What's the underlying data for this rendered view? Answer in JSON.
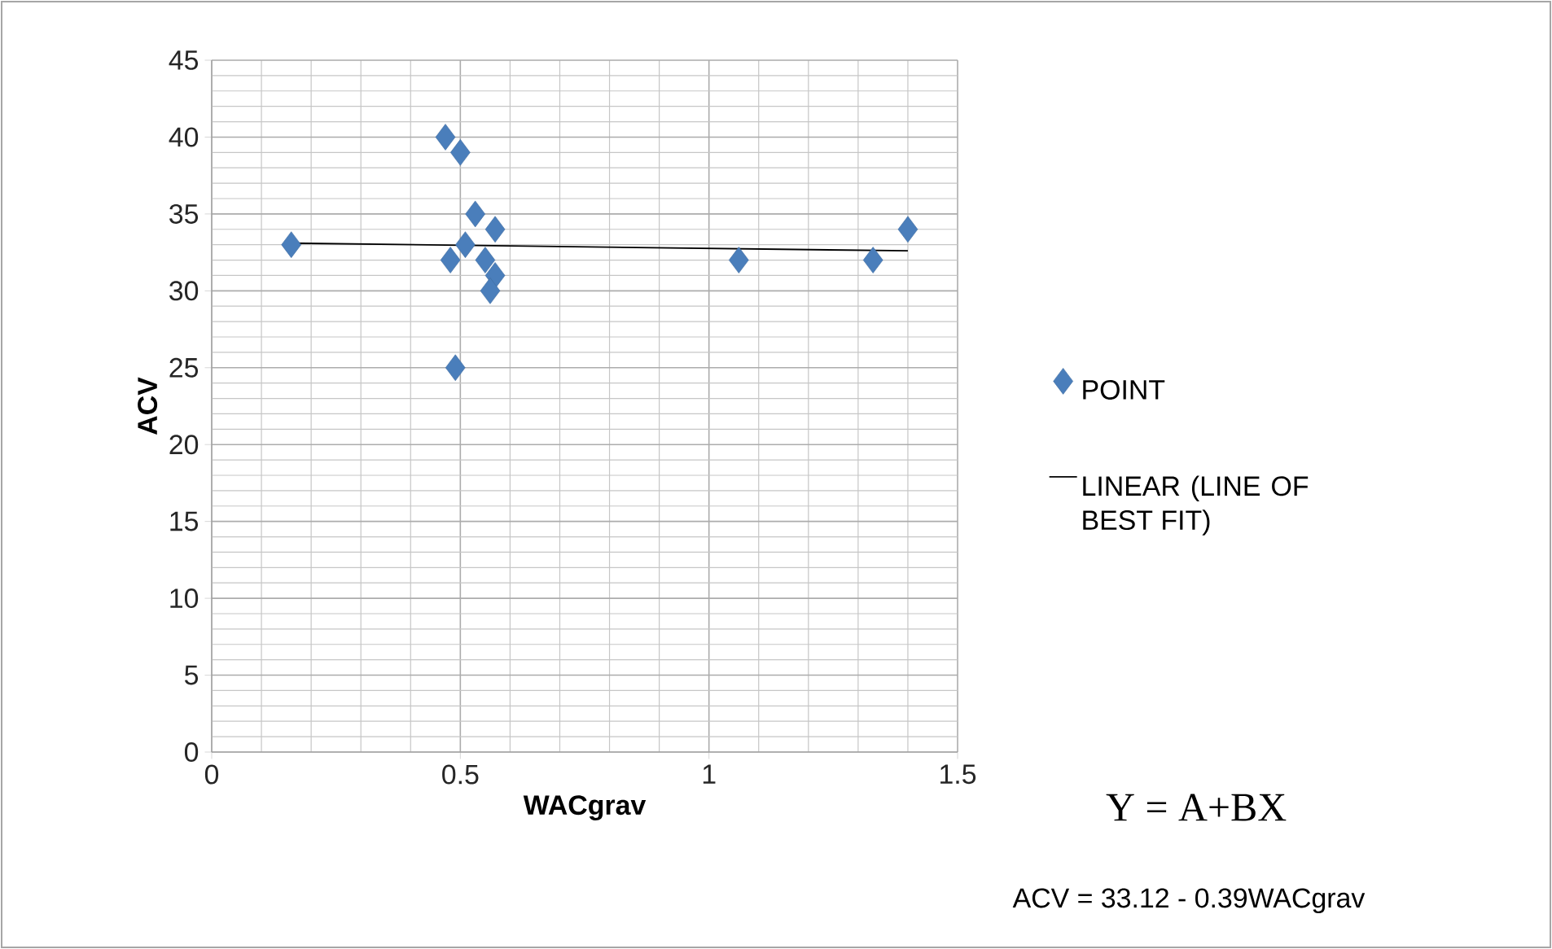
{
  "chart_data": {
    "type": "scatter",
    "xlabel": "WACgrav",
    "ylabel": "ACV",
    "xlim": [
      0,
      1.5
    ],
    "ylim": [
      0,
      45
    ],
    "xticks": [
      0,
      0.5,
      1,
      1.5
    ],
    "yticks": [
      0,
      5,
      10,
      15,
      20,
      25,
      30,
      35,
      40,
      45
    ],
    "grid": true,
    "legend": "right",
    "marker": "diamond",
    "series": [
      {
        "name": "POINT",
        "color": "#4a7ebb",
        "x": [
          0.16,
          0.47,
          0.5,
          0.53,
          0.57,
          0.51,
          0.48,
          0.55,
          0.57,
          0.56,
          0.49,
          1.06,
          1.33,
          1.4
        ],
        "values": [
          33,
          40,
          39,
          35,
          34,
          33,
          32,
          32,
          31,
          30,
          25,
          32,
          32,
          34
        ]
      },
      {
        "name": "LINEAR (LINE OF BEST FIT)",
        "type": "line",
        "color": "#000000",
        "marker": "none",
        "x": [
          0.16,
          1.4
        ],
        "values": [
          33.1,
          32.6
        ]
      }
    ],
    "annotations": [
      "Y = A+BX",
      "ACV = 33.12 - 0.39WACgrav"
    ]
  }
}
